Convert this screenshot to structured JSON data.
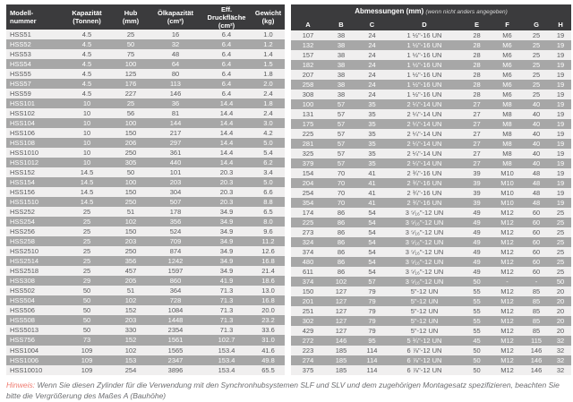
{
  "colors": {
    "header_bg": "#3b3b3d",
    "row_gray": "#a7a7a7",
    "row_light": "#f0efef",
    "text_dark": "#58595b",
    "note_red": "#ef7b70",
    "note_gray": "#6d6e71"
  },
  "left_table": {
    "columns": [
      [
        "Modell-",
        "nummer"
      ],
      [
        "Kapazität",
        "(Tonnen)"
      ],
      [
        "Hub",
        "(mm)"
      ],
      [
        "Ölkapazität",
        "(cm³)"
      ],
      [
        "Eff. Druckfläche",
        "(cm²)"
      ],
      [
        "Gewicht",
        "(kg)"
      ]
    ]
  },
  "right_table": {
    "title": "Abmessungen (mm)",
    "title_suffix": "(wenn nicht anders angegeben)",
    "columns": [
      [
        "A"
      ],
      [
        "B"
      ],
      [
        "C"
      ],
      [
        "D"
      ],
      [
        "E"
      ],
      [
        "F"
      ],
      [
        "G"
      ],
      [
        "H"
      ]
    ]
  },
  "rows": [
    [
      "HSS51",
      "4.5",
      "25",
      "16",
      "6.4",
      "1.0",
      "107",
      "38",
      "24",
      "1 ½\"-16 UN",
      "28",
      "M6",
      "25",
      "19"
    ],
    [
      "HSS52",
      "4.5",
      "50",
      "32",
      "6.4",
      "1.2",
      "132",
      "38",
      "24",
      "1 ½\"-16 UN",
      "28",
      "M6",
      "25",
      "19"
    ],
    [
      "HSS53",
      "4.5",
      "75",
      "48",
      "6.4",
      "1.4",
      "157",
      "38",
      "24",
      "1 ½\"-16 UN",
      "28",
      "M6",
      "25",
      "19"
    ],
    [
      "HSS54",
      "4.5",
      "100",
      "64",
      "6.4",
      "1.5",
      "182",
      "38",
      "24",
      "1 ½\"-16 UN",
      "28",
      "M6",
      "25",
      "19"
    ],
    [
      "HSS55",
      "4.5",
      "125",
      "80",
      "6.4",
      "1.8",
      "207",
      "38",
      "24",
      "1 ½\"-16 UN",
      "28",
      "M6",
      "25",
      "19"
    ],
    [
      "HSS57",
      "4.5",
      "176",
      "113",
      "6.4",
      "2.0",
      "258",
      "38",
      "24",
      "1 ½\"-16 UN",
      "28",
      "M6",
      "25",
      "19"
    ],
    [
      "HSS59",
      "4.5",
      "227",
      "146",
      "6.4",
      "2.4",
      "308",
      "38",
      "24",
      "1 ½\"-16 UN",
      "28",
      "M6",
      "25",
      "19"
    ],
    [
      "HSS101",
      "10",
      "25",
      "36",
      "14.4",
      "1.8",
      "100",
      "57",
      "35",
      "2 ¼\"-14 UN",
      "27",
      "M8",
      "40",
      "19"
    ],
    [
      "HSS102",
      "10",
      "56",
      "81",
      "14.4",
      "2.4",
      "131",
      "57",
      "35",
      "2 ¼\"-14 UN",
      "27",
      "M8",
      "40",
      "19"
    ],
    [
      "HSS104",
      "10",
      "100",
      "144",
      "14.4",
      "3.0",
      "175",
      "57",
      "35",
      "2 ¼\"-14 UN",
      "27",
      "M8",
      "40",
      "19"
    ],
    [
      "HSS106",
      "10",
      "150",
      "217",
      "14.4",
      "4.2",
      "225",
      "57",
      "35",
      "2 ¼\"-14 UN",
      "27",
      "M8",
      "40",
      "19"
    ],
    [
      "HSS108",
      "10",
      "206",
      "297",
      "14.4",
      "5.0",
      "281",
      "57",
      "35",
      "2 ¼\"-14 UN",
      "27",
      "M8",
      "40",
      "19"
    ],
    [
      "HSS1010",
      "10",
      "250",
      "361",
      "14.4",
      "5.4",
      "325",
      "57",
      "35",
      "2 ¼\"-14 UN",
      "27",
      "M8",
      "40",
      "19"
    ],
    [
      "HSS1012",
      "10",
      "305",
      "440",
      "14.4",
      "6.2",
      "379",
      "57",
      "35",
      "2 ¼\"-14 UN",
      "27",
      "M8",
      "40",
      "19"
    ],
    [
      "HSS152",
      "14.5",
      "50",
      "101",
      "20.3",
      "3.4",
      "154",
      "70",
      "41",
      "2 ¾\"-16 UN",
      "39",
      "M10",
      "48",
      "19"
    ],
    [
      "HSS154",
      "14.5",
      "100",
      "203",
      "20.3",
      "5.0",
      "204",
      "70",
      "41",
      "2 ¾\"-16 UN",
      "39",
      "M10",
      "48",
      "19"
    ],
    [
      "HSS156",
      "14.5",
      "150",
      "304",
      "20.3",
      "6.6",
      "254",
      "70",
      "41",
      "2 ¾\"-16 UN",
      "39",
      "M10",
      "48",
      "19"
    ],
    [
      "HSS1510",
      "14.5",
      "250",
      "507",
      "20.3",
      "8.8",
      "354",
      "70",
      "41",
      "2 ¾\"-16 UN",
      "39",
      "M10",
      "48",
      "19"
    ],
    [
      "HSS252",
      "25",
      "51",
      "178",
      "34.9",
      "6.5",
      "174",
      "86",
      "54",
      "3 ⁵⁄₁₆\"-12 UN",
      "49",
      "M12",
      "60",
      "25"
    ],
    [
      "HSS254",
      "25",
      "102",
      "356",
      "34.9",
      "8.0",
      "225",
      "86",
      "54",
      "3 ⁵⁄₁₆\"-12 UN",
      "49",
      "M12",
      "60",
      "25"
    ],
    [
      "HSS256",
      "25",
      "150",
      "524",
      "34.9",
      "9.6",
      "273",
      "86",
      "54",
      "3 ⁵⁄₁₆\"-12 UN",
      "49",
      "M12",
      "60",
      "25"
    ],
    [
      "HSS258",
      "25",
      "203",
      "709",
      "34.9",
      "11.2",
      "324",
      "86",
      "54",
      "3 ⁵⁄₁₆\"-12 UN",
      "49",
      "M12",
      "60",
      "25"
    ],
    [
      "HSS2510",
      "25",
      "250",
      "874",
      "34.9",
      "12.6",
      "374",
      "86",
      "54",
      "3 ⁵⁄₁₆\"-12 UN",
      "49",
      "M12",
      "60",
      "25"
    ],
    [
      "HSS2514",
      "25",
      "356",
      "1242",
      "34.9",
      "16.8",
      "480",
      "86",
      "54",
      "3 ⁵⁄₁₆\"-12 UN",
      "49",
      "M12",
      "60",
      "25"
    ],
    [
      "HSS2518",
      "25",
      "457",
      "1597",
      "34.9",
      "21.4",
      "611",
      "86",
      "54",
      "3 ⁵⁄₁₆\"-12 UN",
      "49",
      "M12",
      "60",
      "25"
    ],
    [
      "HSS308",
      "29",
      "205",
      "860",
      "41.9",
      "18.6",
      "374",
      "102",
      "57",
      "3 ⁵⁄₁₆\"-12 UN",
      "50",
      "-",
      "-",
      "50"
    ],
    [
      "HSS502",
      "50",
      "51",
      "364",
      "71.3",
      "13.0",
      "150",
      "127",
      "79",
      "5\"-12 UN",
      "55",
      "M12",
      "85",
      "20"
    ],
    [
      "HSS504",
      "50",
      "102",
      "728",
      "71.3",
      "16.8",
      "201",
      "127",
      "79",
      "5\"-12 UN",
      "55",
      "M12",
      "85",
      "20"
    ],
    [
      "HSS506",
      "50",
      "152",
      "1084",
      "71.3",
      "20.0",
      "251",
      "127",
      "79",
      "5\"-12 UN",
      "55",
      "M12",
      "85",
      "20"
    ],
    [
      "HSS508",
      "50",
      "203",
      "1448",
      "71.3",
      "23.2",
      "302",
      "127",
      "79",
      "5\"-12 UN",
      "55",
      "M12",
      "85",
      "20"
    ],
    [
      "HSS5013",
      "50",
      "330",
      "2354",
      "71.3",
      "33.6",
      "429",
      "127",
      "79",
      "5\"-12 UN",
      "55",
      "M12",
      "85",
      "20"
    ],
    [
      "HSS756",
      "73",
      "152",
      "1561",
      "102.7",
      "31.0",
      "272",
      "146",
      "95",
      "5 ¾\"-12 UN",
      "45",
      "M12",
      "115",
      "32"
    ],
    [
      "HSS1004",
      "109",
      "102",
      "1565",
      "153.4",
      "41.6",
      "223",
      "185",
      "114",
      "6 ⅞\"-12 UN",
      "50",
      "M12",
      "146",
      "32"
    ],
    [
      "HSS1006",
      "109",
      "153",
      "2347",
      "153.4",
      "49.8",
      "274",
      "185",
      "114",
      "6 ⅞\"-12 UN",
      "50",
      "M12",
      "146",
      "32"
    ],
    [
      "HSS10010",
      "109",
      "254",
      "3896",
      "153.4",
      "65.5",
      "375",
      "185",
      "114",
      "6 ⅞\"-12 UN",
      "50",
      "M12",
      "146",
      "32"
    ]
  ],
  "note": {
    "label": "Hinweis:",
    "text": "Wenn Sie diesen Zylinder für die Verwendung mit den Synchronhubsystemen SLF und SLV und dem zugehörigen Montagesatz spezifizieren, beachten Sie bitte die Vergrößerung des Maßes A (Bauhöhe)"
  }
}
